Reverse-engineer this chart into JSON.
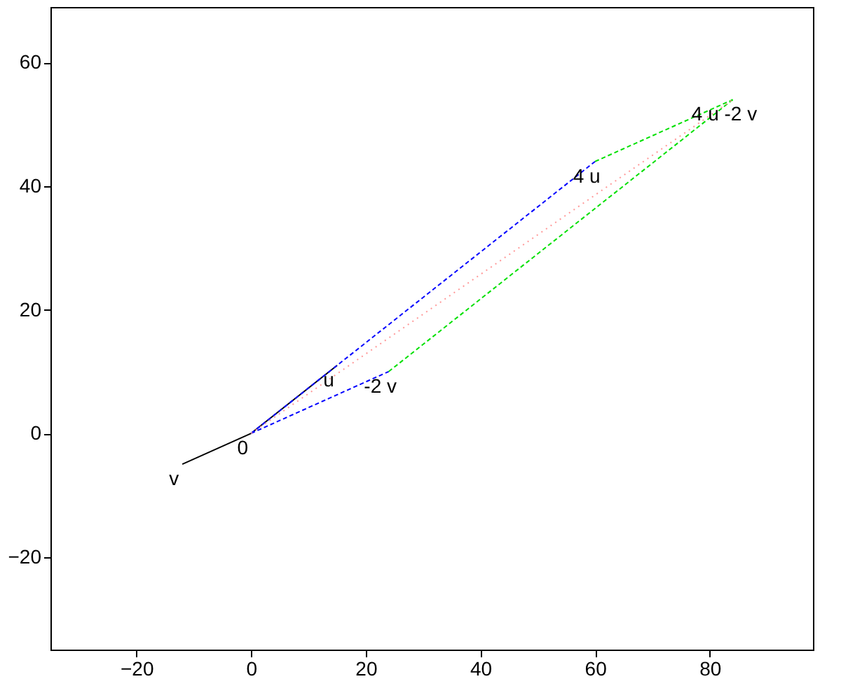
{
  "chart_data": {
    "type": "line",
    "xlim": [
      -35,
      98
    ],
    "ylim": [
      -35,
      69
    ],
    "xticks": [
      -20,
      0,
      20,
      40,
      60,
      80
    ],
    "yticks": [
      -20,
      0,
      20,
      40,
      60
    ],
    "grid": false,
    "series": [
      {
        "x": [
          -12,
          0,
          15
        ],
        "values": [
          -5,
          0,
          11
        ],
        "color": "#000000",
        "line_style": "solid"
      },
      {
        "x": [
          0,
          60
        ],
        "values": [
          0,
          44
        ],
        "color": "#0000ff",
        "line_style": "dashed"
      },
      {
        "x": [
          0,
          24
        ],
        "values": [
          0,
          10
        ],
        "color": "#0000ff",
        "line_style": "dashed"
      },
      {
        "x": [
          60,
          84
        ],
        "values": [
          44,
          54
        ],
        "color": "#00e000",
        "line_style": "dashed"
      },
      {
        "x": [
          24,
          84
        ],
        "values": [
          10,
          54
        ],
        "color": "#00e000",
        "line_style": "dashed"
      },
      {
        "x": [
          0,
          84
        ],
        "values": [
          0,
          54
        ],
        "color": "#ff9999",
        "line_style": "dotted"
      }
    ],
    "annotations": [
      {
        "text": "0",
        "x": 0,
        "y": 0
      },
      {
        "text": "u",
        "x": 15,
        "y": 11
      },
      {
        "text": "v",
        "x": -12,
        "y": -5
      },
      {
        "text": "-2 v",
        "x": 24,
        "y": 10
      },
      {
        "text": "4 u",
        "x": 60,
        "y": 44
      },
      {
        "text": "4 u -2 v",
        "x": 84,
        "y": 54
      }
    ]
  }
}
